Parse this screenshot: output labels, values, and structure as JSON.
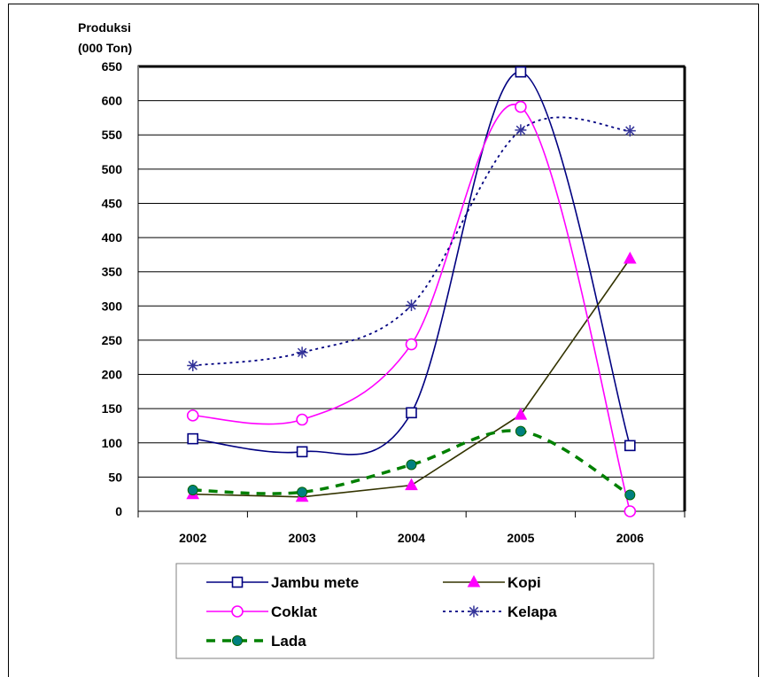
{
  "chart_data": {
    "type": "line",
    "ylabel_line1": "Produksi",
    "ylabel_line2": "(000 Ton)",
    "xlabel": "",
    "title": "",
    "categories": [
      "2002",
      "2003",
      "2004",
      "2005",
      "2006"
    ],
    "ylim": [
      0,
      650
    ],
    "yticks": [
      0,
      50,
      100,
      150,
      200,
      250,
      300,
      350,
      400,
      450,
      500,
      550,
      600,
      650
    ],
    "grid": true,
    "legend_position": "bottom",
    "series": [
      {
        "name": "Jambu mete",
        "values": [
          106,
          87,
          144,
          642,
          96
        ],
        "color": "#000080",
        "marker": "square",
        "dash": "solid",
        "width": 1.6
      },
      {
        "name": "Kopi",
        "values": [
          25,
          21,
          38,
          141,
          369
        ],
        "color": "#333300",
        "marker": "triangle",
        "markerColor": "#FF00FF",
        "dash": "solid",
        "width": 1.6
      },
      {
        "name": "Coklat",
        "values": [
          140,
          134,
          244,
          591,
          0
        ],
        "color": "#FF00FF",
        "marker": "circle",
        "dash": "solid",
        "width": 1.6
      },
      {
        "name": "Kelapa",
        "values": [
          213,
          232,
          301,
          557,
          556
        ],
        "color": "#000080",
        "marker": "asterisk",
        "markerColor": "#333399",
        "dash": "dotted",
        "width": 1.8
      },
      {
        "name": "Lada",
        "values": [
          31,
          28,
          68,
          117,
          24
        ],
        "color": "#008000",
        "marker": "dot",
        "markerColor": "#008080",
        "dash": "dashed",
        "width": 3.5
      }
    ]
  }
}
